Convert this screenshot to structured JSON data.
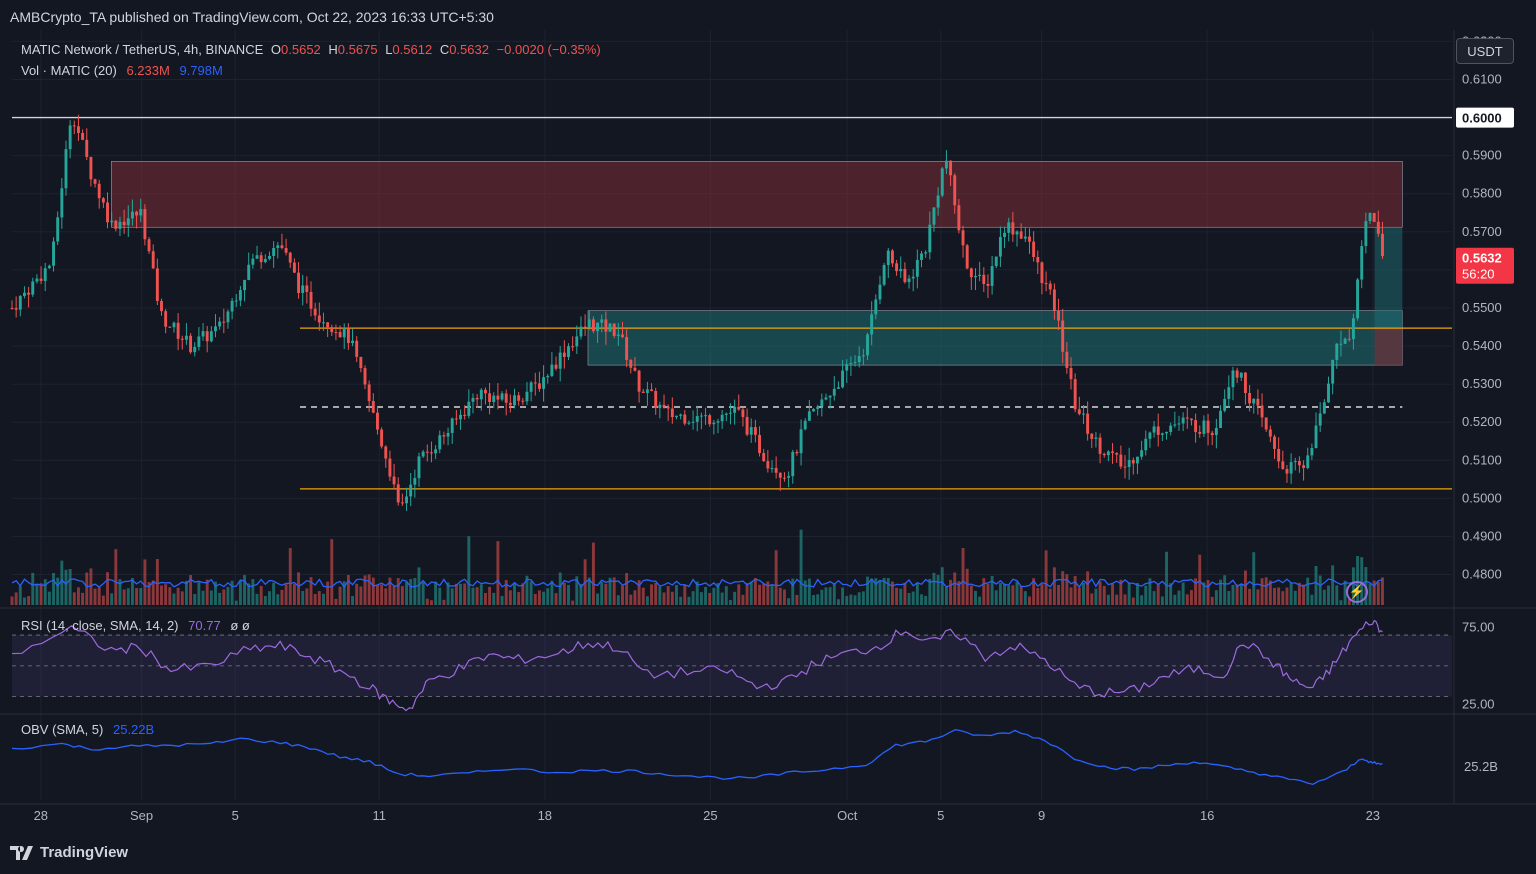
{
  "header": {
    "publisher": "AMBCrypto_TA published on TradingView.com, Oct 22, 2023 16:33 UTC+5:30",
    "currency_button": "USDT"
  },
  "legend": {
    "symbol": "MATIC Network / TetherUS, 4h, BINANCE",
    "open_label": "O",
    "open": "0.5652",
    "high_label": "H",
    "high": "0.5675",
    "low_label": "L",
    "low": "0.5612",
    "close_label": "C",
    "close": "0.5632",
    "change": "−0.0020 (−0.35%)",
    "vol_label": "Vol · MATIC (20)",
    "vol_value": "6.233M",
    "vol_ma": "9.798M",
    "rsi_label": "RSI (14, close, SMA, 14, 2)",
    "rsi_value": "70.77",
    "rsi_extra": "ø  ø",
    "obv_label": "OBV (SMA, 5)",
    "obv_value": "25.22B"
  },
  "price_badge": {
    "price": "0.5632",
    "countdown": "56:20"
  },
  "level_badge": "0.6000",
  "footer": {
    "brand": "TradingView"
  },
  "colors": {
    "background": "#131722",
    "up": "#26a69a",
    "down": "#ef5350",
    "orange_level": "#f0a30a",
    "supply_zone": "#7b2d35",
    "demand_zone": "#1f6f73",
    "rsi": "#9c6ade",
    "obv": "#2962ff",
    "volume_ma": "#2962ff"
  },
  "chart_data": [
    {
      "type": "candlestick",
      "title": "MATIC Network / TetherUS, 4h, BINANCE",
      "x_ticks": [
        "28",
        "Sep",
        "5",
        "11",
        "18",
        "25",
        "Oct",
        "5",
        "9",
        "16",
        "23"
      ],
      "y_ticks": [
        "0.6200",
        "0.6100",
        "0.6000",
        "0.5900",
        "0.5800",
        "0.5700",
        "0.5600",
        "0.5500",
        "0.5400",
        "0.5300",
        "0.5200",
        "0.5100",
        "0.5000",
        "0.4900",
        "0.4800"
      ],
      "ylim": [
        0.472,
        0.623
      ],
      "close_path": [
        {
          "x": 0,
          "y": 0.55
        },
        {
          "x": 4,
          "y": 0.562
        },
        {
          "x": 6,
          "y": 0.602
        },
        {
          "x": 8,
          "y": 0.585
        },
        {
          "x": 10,
          "y": 0.572
        },
        {
          "x": 13,
          "y": 0.575
        },
        {
          "x": 15,
          "y": 0.548
        },
        {
          "x": 18,
          "y": 0.54
        },
        {
          "x": 21,
          "y": 0.545
        },
        {
          "x": 24,
          "y": 0.562
        },
        {
          "x": 27,
          "y": 0.567
        },
        {
          "x": 29,
          "y": 0.555
        },
        {
          "x": 31,
          "y": 0.548
        },
        {
          "x": 34,
          "y": 0.542
        },
        {
          "x": 36,
          "y": 0.525
        },
        {
          "x": 38,
          "y": 0.508
        },
        {
          "x": 39,
          "y": 0.496
        },
        {
          "x": 41,
          "y": 0.51
        },
        {
          "x": 44,
          "y": 0.518
        },
        {
          "x": 47,
          "y": 0.528
        },
        {
          "x": 50,
          "y": 0.525
        },
        {
          "x": 53,
          "y": 0.53
        },
        {
          "x": 56,
          "y": 0.54
        },
        {
          "x": 58,
          "y": 0.546
        },
        {
          "x": 61,
          "y": 0.544
        },
        {
          "x": 63,
          "y": 0.53
        },
        {
          "x": 66,
          "y": 0.522
        },
        {
          "x": 70,
          "y": 0.521
        },
        {
          "x": 73,
          "y": 0.523
        },
        {
          "x": 76,
          "y": 0.51
        },
        {
          "x": 78,
          "y": 0.506
        },
        {
          "x": 80,
          "y": 0.52
        },
        {
          "x": 83,
          "y": 0.53
        },
        {
          "x": 86,
          "y": 0.54
        },
        {
          "x": 88,
          "y": 0.565
        },
        {
          "x": 90,
          "y": 0.556
        },
        {
          "x": 92,
          "y": 0.566
        },
        {
          "x": 94,
          "y": 0.59
        },
        {
          "x": 96,
          "y": 0.562
        },
        {
          "x": 98,
          "y": 0.555
        },
        {
          "x": 100,
          "y": 0.572
        },
        {
          "x": 102,
          "y": 0.569
        },
        {
          "x": 105,
          "y": 0.55
        },
        {
          "x": 107,
          "y": 0.525
        },
        {
          "x": 109,
          "y": 0.515
        },
        {
          "x": 112,
          "y": 0.508
        },
        {
          "x": 115,
          "y": 0.518
        },
        {
          "x": 118,
          "y": 0.52
        },
        {
          "x": 121,
          "y": 0.518
        },
        {
          "x": 123,
          "y": 0.535
        },
        {
          "x": 125,
          "y": 0.525
        },
        {
          "x": 128,
          "y": 0.508
        },
        {
          "x": 130,
          "y": 0.508
        },
        {
          "x": 132,
          "y": 0.523
        },
        {
          "x": 133,
          "y": 0.538
        },
        {
          "x": 135,
          "y": 0.545
        },
        {
          "x": 136,
          "y": 0.57
        },
        {
          "x": 137,
          "y": 0.576
        },
        {
          "x": 138,
          "y": 0.5632
        }
      ],
      "x_domain": [
        0,
        145
      ],
      "levels": [
        {
          "price": 0.6,
          "style": "solid",
          "color": "#d1d4dc"
        },
        {
          "price": 0.5447,
          "style": "solid",
          "color": "#f0a30a"
        },
        {
          "price": 0.524,
          "style": "dashed",
          "color": "#ffffff"
        },
        {
          "price": 0.5025,
          "style": "solid",
          "color": "#f0a30a"
        }
      ],
      "zones": [
        {
          "name": "supply",
          "from_x": 10,
          "to_x": 140,
          "low": 0.5712,
          "high": 0.5885,
          "color": "#7b2d35"
        },
        {
          "name": "demand",
          "from_x": 58,
          "to_x": 140,
          "low": 0.535,
          "high": 0.5493,
          "color": "#1f6f73"
        }
      ]
    },
    {
      "type": "bar",
      "title": "Vol · MATIC (20)",
      "current": "6.233M",
      "ma": "9.798M"
    },
    {
      "type": "line",
      "title": "RSI (14, close, SMA, 14, 2)",
      "y_ticks": [
        "75.00",
        "25.00"
      ],
      "ylim": [
        20,
        85
      ],
      "bands": [
        30,
        50,
        70
      ],
      "current": 70.77,
      "path": [
        {
          "x": 0,
          "y": 58
        },
        {
          "x": 6,
          "y": 74
        },
        {
          "x": 10,
          "y": 60
        },
        {
          "x": 13,
          "y": 62
        },
        {
          "x": 16,
          "y": 47
        },
        {
          "x": 20,
          "y": 50
        },
        {
          "x": 24,
          "y": 61
        },
        {
          "x": 27,
          "y": 63
        },
        {
          "x": 30,
          "y": 56
        },
        {
          "x": 33,
          "y": 47
        },
        {
          "x": 36,
          "y": 36
        },
        {
          "x": 38,
          "y": 27
        },
        {
          "x": 40,
          "y": 22
        },
        {
          "x": 42,
          "y": 40
        },
        {
          "x": 45,
          "y": 48
        },
        {
          "x": 48,
          "y": 57
        },
        {
          "x": 51,
          "y": 54
        },
        {
          "x": 55,
          "y": 58
        },
        {
          "x": 58,
          "y": 65
        },
        {
          "x": 61,
          "y": 62
        },
        {
          "x": 64,
          "y": 44
        },
        {
          "x": 68,
          "y": 46
        },
        {
          "x": 72,
          "y": 47
        },
        {
          "x": 75,
          "y": 36
        },
        {
          "x": 78,
          "y": 40
        },
        {
          "x": 81,
          "y": 52
        },
        {
          "x": 84,
          "y": 58
        },
        {
          "x": 87,
          "y": 62
        },
        {
          "x": 90,
          "y": 74
        },
        {
          "x": 92,
          "y": 64
        },
        {
          "x": 95,
          "y": 72
        },
        {
          "x": 98,
          "y": 56
        },
        {
          "x": 101,
          "y": 63
        },
        {
          "x": 104,
          "y": 54
        },
        {
          "x": 107,
          "y": 37
        },
        {
          "x": 110,
          "y": 32
        },
        {
          "x": 113,
          "y": 34
        },
        {
          "x": 116,
          "y": 43
        },
        {
          "x": 119,
          "y": 48
        },
        {
          "x": 122,
          "y": 44
        },
        {
          "x": 124,
          "y": 66
        },
        {
          "x": 127,
          "y": 52
        },
        {
          "x": 129,
          "y": 40
        },
        {
          "x": 131,
          "y": 35
        },
        {
          "x": 133,
          "y": 50
        },
        {
          "x": 135,
          "y": 68
        },
        {
          "x": 137,
          "y": 80
        },
        {
          "x": 138,
          "y": 71
        }
      ]
    },
    {
      "type": "line",
      "title": "OBV (SMA, 5)",
      "y_ticks": [
        "25.2B"
      ],
      "current": "25.22B",
      "path": [
        {
          "x": 0,
          "y": 0.65
        },
        {
          "x": 5,
          "y": 0.72
        },
        {
          "x": 8,
          "y": 0.64
        },
        {
          "x": 12,
          "y": 0.68
        },
        {
          "x": 16,
          "y": 0.7
        },
        {
          "x": 20,
          "y": 0.72
        },
        {
          "x": 23,
          "y": 0.8
        },
        {
          "x": 27,
          "y": 0.74
        },
        {
          "x": 30,
          "y": 0.66
        },
        {
          "x": 33,
          "y": 0.52
        },
        {
          "x": 36,
          "y": 0.44
        },
        {
          "x": 39,
          "y": 0.25
        },
        {
          "x": 42,
          "y": 0.22
        },
        {
          "x": 46,
          "y": 0.26
        },
        {
          "x": 50,
          "y": 0.34
        },
        {
          "x": 54,
          "y": 0.28
        },
        {
          "x": 58,
          "y": 0.3
        },
        {
          "x": 62,
          "y": 0.3
        },
        {
          "x": 66,
          "y": 0.25
        },
        {
          "x": 70,
          "y": 0.2
        },
        {
          "x": 74,
          "y": 0.18
        },
        {
          "x": 78,
          "y": 0.26
        },
        {
          "x": 82,
          "y": 0.32
        },
        {
          "x": 86,
          "y": 0.4
        },
        {
          "x": 89,
          "y": 0.7
        },
        {
          "x": 92,
          "y": 0.76
        },
        {
          "x": 95,
          "y": 0.92
        },
        {
          "x": 98,
          "y": 0.84
        },
        {
          "x": 101,
          "y": 0.92
        },
        {
          "x": 104,
          "y": 0.78
        },
        {
          "x": 107,
          "y": 0.5
        },
        {
          "x": 110,
          "y": 0.36
        },
        {
          "x": 113,
          "y": 0.32
        },
        {
          "x": 116,
          "y": 0.38
        },
        {
          "x": 119,
          "y": 0.44
        },
        {
          "x": 122,
          "y": 0.36
        },
        {
          "x": 125,
          "y": 0.28
        },
        {
          "x": 128,
          "y": 0.18
        },
        {
          "x": 131,
          "y": 0.1
        },
        {
          "x": 134,
          "y": 0.28
        },
        {
          "x": 136,
          "y": 0.5
        },
        {
          "x": 137,
          "y": 0.42
        },
        {
          "x": 138,
          "y": 0.4
        }
      ]
    }
  ]
}
